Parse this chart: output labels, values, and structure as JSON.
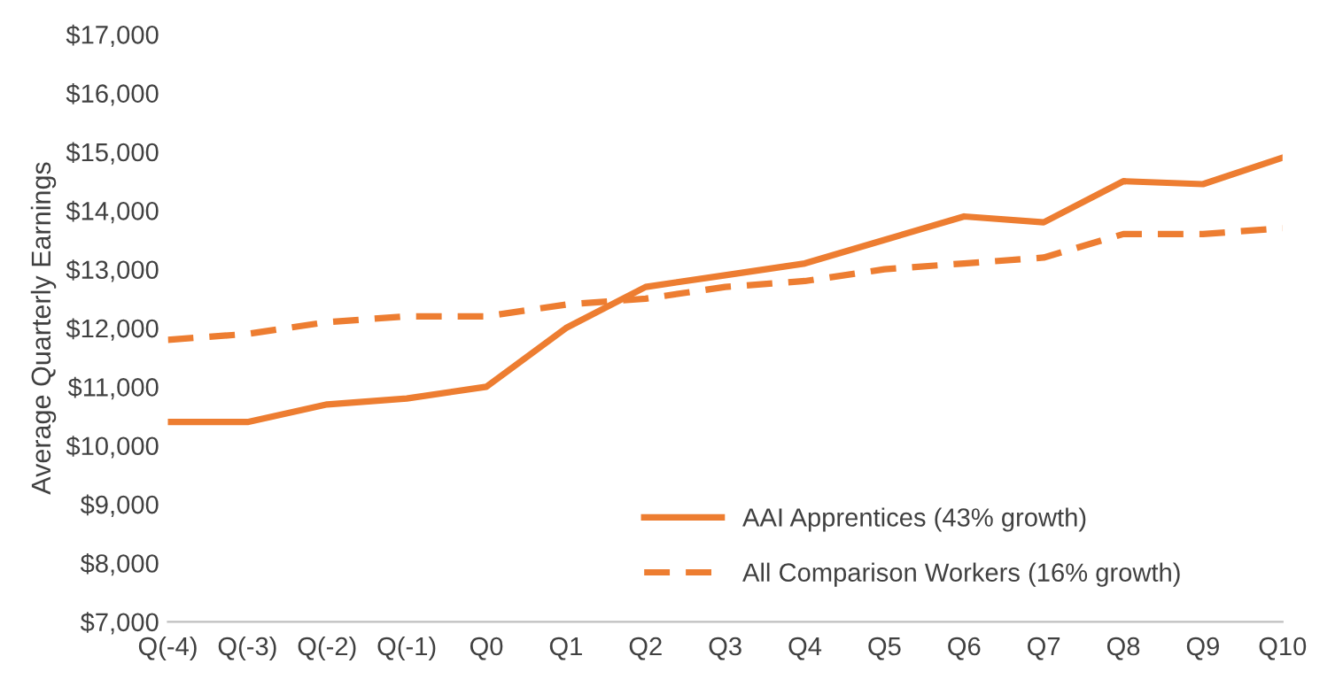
{
  "chart_data": {
    "type": "line",
    "ylabel": "Average Quarterly Earnings",
    "categories": [
      "Q(-4)",
      "Q(-3)",
      "Q(-2)",
      "Q(-1)",
      "Q0",
      "Q1",
      "Q2",
      "Q3",
      "Q4",
      "Q5",
      "Q6",
      "Q7",
      "Q8",
      "Q9",
      "Q10"
    ],
    "series": [
      {
        "name": "AAI Apprentices (43% growth)",
        "color": "#ed7d31",
        "line_style": "solid",
        "values": [
          10400,
          10400,
          10700,
          10800,
          11000,
          12000,
          12700,
          12900,
          13100,
          13500,
          13900,
          13800,
          14500,
          14450,
          14900
        ]
      },
      {
        "name": "All Comparison Workers (16% growth)",
        "color": "#ed7d31",
        "line_style": "dashed",
        "values": [
          11800,
          11900,
          12100,
          12200,
          12200,
          12400,
          12500,
          12700,
          12800,
          13000,
          13100,
          13200,
          13600,
          13600,
          13700
        ]
      }
    ],
    "ylim": [
      7000,
      17000
    ],
    "yticks": [
      {
        "value": 7000,
        "label": "$7,000"
      },
      {
        "value": 8000,
        "label": "$8,000"
      },
      {
        "value": 9000,
        "label": "$9,000"
      },
      {
        "value": 10000,
        "label": "$10,000"
      },
      {
        "value": 11000,
        "label": "$11,000"
      },
      {
        "value": 12000,
        "label": "$12,000"
      },
      {
        "value": 13000,
        "label": "$13,000"
      },
      {
        "value": 14000,
        "label": "$14,000"
      },
      {
        "value": 15000,
        "label": "$15,000"
      },
      {
        "value": 16000,
        "label": "$16,000"
      },
      {
        "value": 17000,
        "label": "$17,000"
      }
    ],
    "grid": false,
    "legend": "bottom right",
    "marker": "none"
  }
}
